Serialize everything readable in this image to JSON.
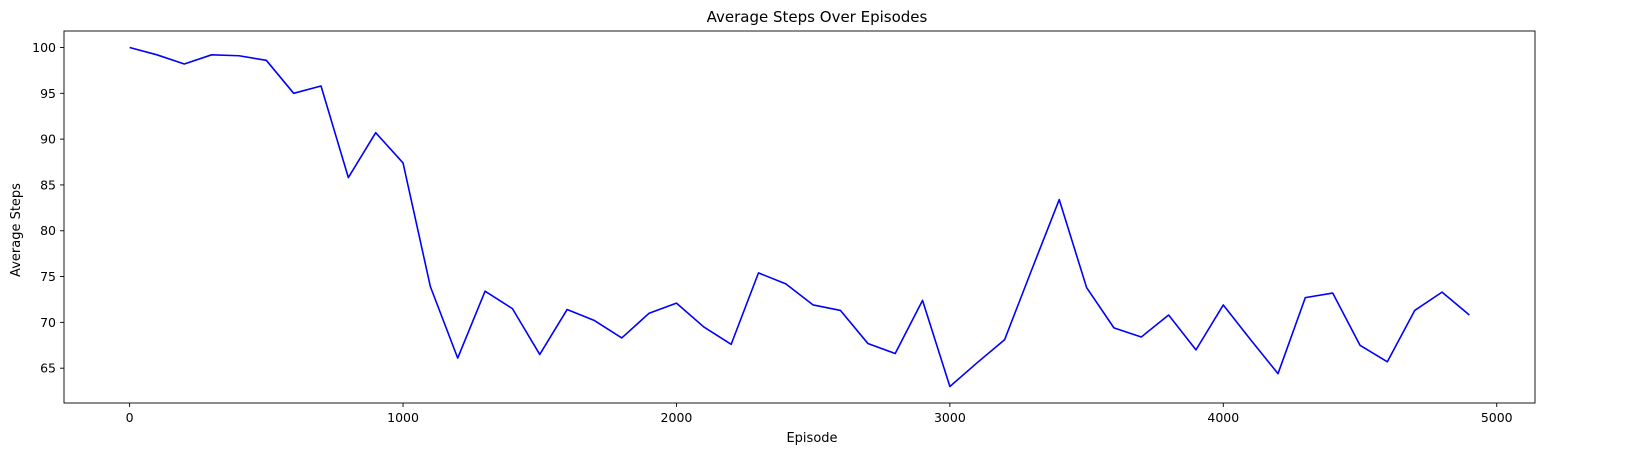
{
  "chart_data": {
    "type": "line",
    "title": "Average Steps Over Episodes",
    "xlabel": "Episode",
    "ylabel": "Average Steps",
    "xlim": [
      -240,
      5140
    ],
    "ylim": [
      61.2,
      101.8
    ],
    "xticks": [
      0,
      1000,
      2000,
      3000,
      4000,
      5000
    ],
    "yticks": [
      65,
      70,
      75,
      80,
      85,
      90,
      95,
      100
    ],
    "grid": false,
    "series": [
      {
        "color": "#0000ff",
        "x": [
          0,
          100,
          200,
          300,
          400,
          500,
          600,
          700,
          800,
          900,
          1000,
          1100,
          1200,
          1300,
          1400,
          1500,
          1600,
          1700,
          1800,
          1900,
          2000,
          2100,
          2200,
          2300,
          2400,
          2500,
          2600,
          2700,
          2800,
          2900,
          3000,
          3100,
          3200,
          3300,
          3400,
          3500,
          3600,
          3700,
          3800,
          3900,
          4000,
          4100,
          4200,
          4300,
          4400,
          4500,
          4600,
          4700,
          4800,
          4900
        ],
        "y": [
          100.0,
          99.2,
          98.2,
          99.2,
          99.1,
          98.6,
          95.0,
          95.8,
          85.8,
          90.7,
          87.4,
          73.9,
          66.1,
          73.4,
          71.5,
          66.5,
          71.4,
          70.2,
          68.3,
          71.0,
          72.1,
          69.5,
          67.6,
          75.4,
          74.2,
          71.9,
          71.3,
          67.7,
          66.6,
          72.4,
          63.0,
          65.6,
          68.1,
          75.8,
          83.4,
          73.8,
          69.4,
          68.4,
          70.8,
          67.0,
          71.9,
          68.1,
          64.4,
          72.7,
          73.2,
          67.5,
          65.7,
          71.3,
          73.3,
          70.8
        ]
      }
    ]
  }
}
